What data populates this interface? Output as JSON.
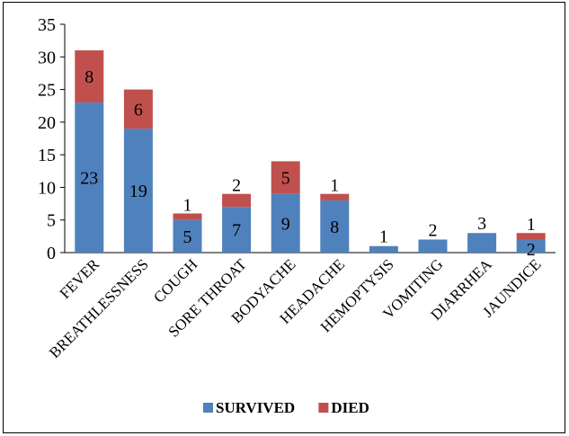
{
  "chart_data": {
    "type": "bar",
    "stacked": true,
    "title": "",
    "xlabel": "",
    "ylabel": "",
    "ylim": [
      0,
      35
    ],
    "yticks": [
      0,
      5,
      10,
      15,
      20,
      25,
      30,
      35
    ],
    "grid": false,
    "legend_position": "bottom",
    "categories": [
      "FEVER",
      "BREATHLESSNESS",
      "COUGH",
      "SORE THROAT",
      "BODYACHE",
      "HEADACHE",
      "HEMOPTYSIS",
      "VOMITING",
      "DIARRHEA",
      "JAUNDICE"
    ],
    "series": [
      {
        "name": "SURVIVED",
        "color": "#4f81bd",
        "values": [
          23,
          19,
          5,
          7,
          9,
          8,
          1,
          2,
          3,
          2
        ]
      },
      {
        "name": "DIED",
        "color": "#c0504d",
        "values": [
          8,
          6,
          1,
          2,
          5,
          1,
          0,
          0,
          0,
          1
        ]
      }
    ]
  }
}
